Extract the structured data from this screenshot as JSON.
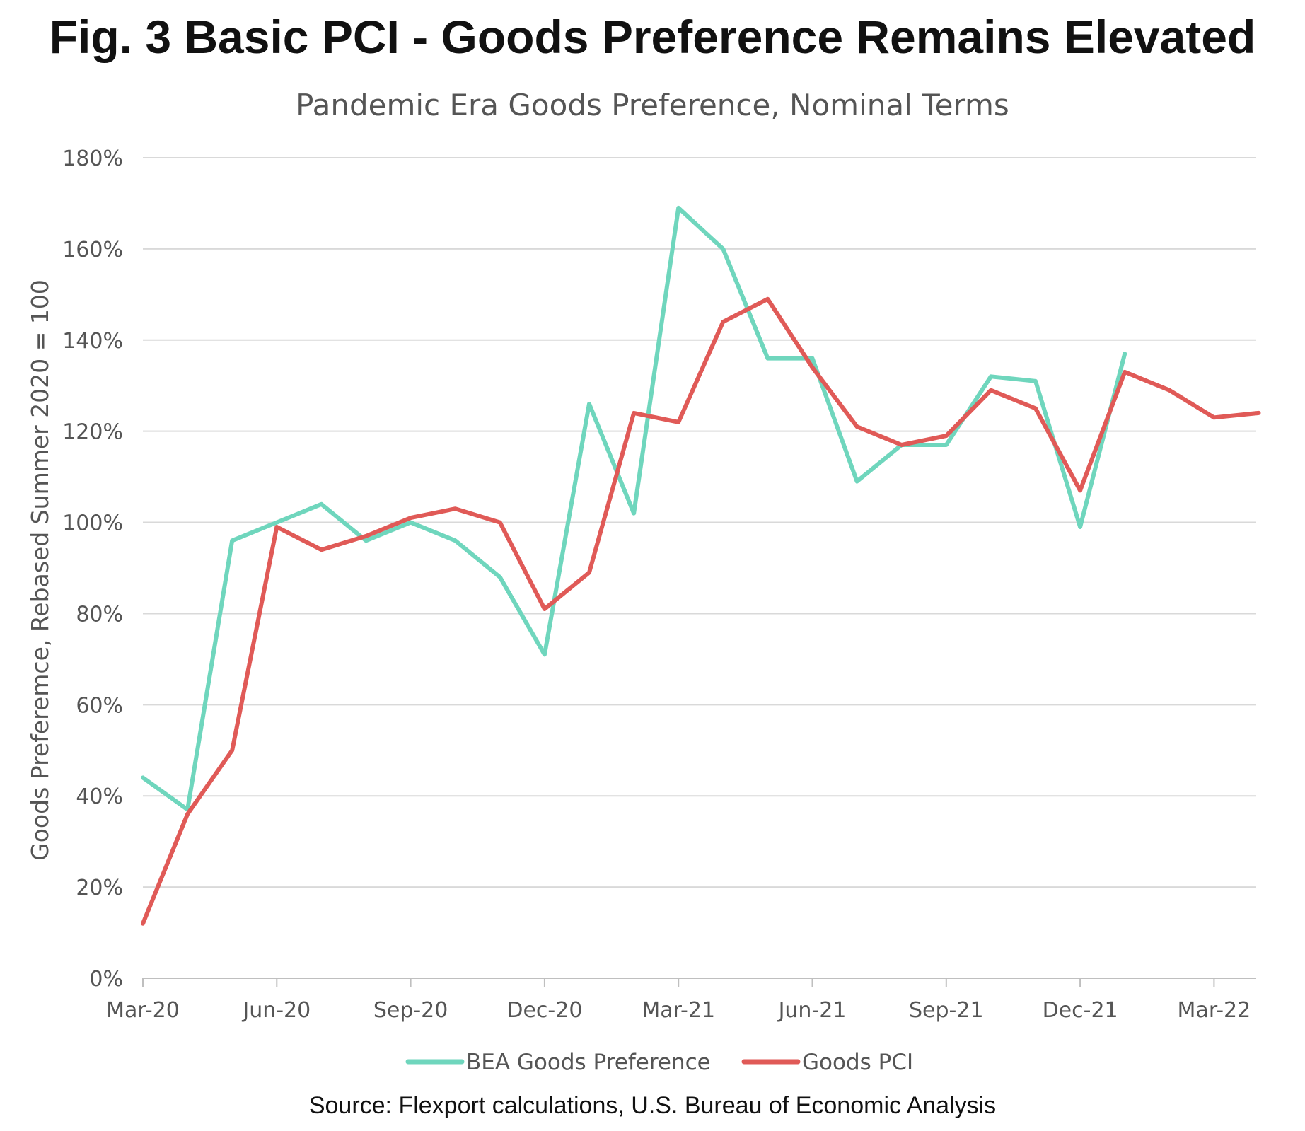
{
  "title": "Fig. 3 Basic PCI - Goods Preference Remains Elevated",
  "subtitle": "Pandemic Era Goods Preference, Nominal Terms",
  "source": "Source: Flexport calculations, U.S. Bureau of Economic Analysis",
  "colors": {
    "bea": "#6fd6bd",
    "pci": "#e05a57",
    "grid": "#d9d9d9",
    "axis_text": "#555555"
  },
  "chart_data": {
    "type": "line",
    "title": "Pandemic Era Goods Preference, Nominal Terms",
    "xlabel": "",
    "ylabel": "Goods Preferemce, Rebased Summer 2020 = 100",
    "ylim": [
      0,
      180
    ],
    "yticks": [
      0,
      20,
      40,
      60,
      80,
      100,
      120,
      140,
      160,
      180
    ],
    "ytick_labels": [
      "0%",
      "20%",
      "40%",
      "60%",
      "80%",
      "100%",
      "120%",
      "140%",
      "160%",
      "180%"
    ],
    "x": [
      "Mar-20",
      "Apr-20",
      "May-20",
      "Jun-20",
      "Jul-20",
      "Aug-20",
      "Sep-20",
      "Oct-20",
      "Nov-20",
      "Dec-20",
      "Jan-21",
      "Feb-21",
      "Mar-21",
      "Apr-21",
      "May-21",
      "Jun-21",
      "Jul-21",
      "Aug-21",
      "Sep-21",
      "Oct-21",
      "Nov-21",
      "Dec-21",
      "Jan-22",
      "Feb-22",
      "Mar-22",
      "Apr-22"
    ],
    "xtick_labels": [
      "Mar-20",
      "Jun-20",
      "Sep-20",
      "Dec-20",
      "Mar-21",
      "Jun-21",
      "Sep-21",
      "Dec-21",
      "Mar-22"
    ],
    "xtick_index": [
      0,
      3,
      6,
      9,
      12,
      15,
      18,
      21,
      24
    ],
    "legend_position": "bottom-center",
    "grid": true,
    "series": [
      {
        "name": "BEA Goods Preference",
        "color": "#6fd6bd",
        "values": [
          44,
          37,
          96,
          100,
          104,
          96,
          100,
          96,
          88,
          71,
          126,
          102,
          169,
          160,
          136,
          136,
          109,
          117,
          117,
          132,
          131,
          99,
          137,
          null,
          null,
          null
        ]
      },
      {
        "name": "Goods PCI",
        "color": "#e05a57",
        "values": [
          12,
          36,
          50,
          99,
          94,
          97,
          101,
          103,
          100,
          81,
          89,
          124,
          122,
          144,
          149,
          134,
          121,
          117,
          119,
          129,
          125,
          107,
          133,
          129,
          123,
          124
        ]
      }
    ]
  }
}
